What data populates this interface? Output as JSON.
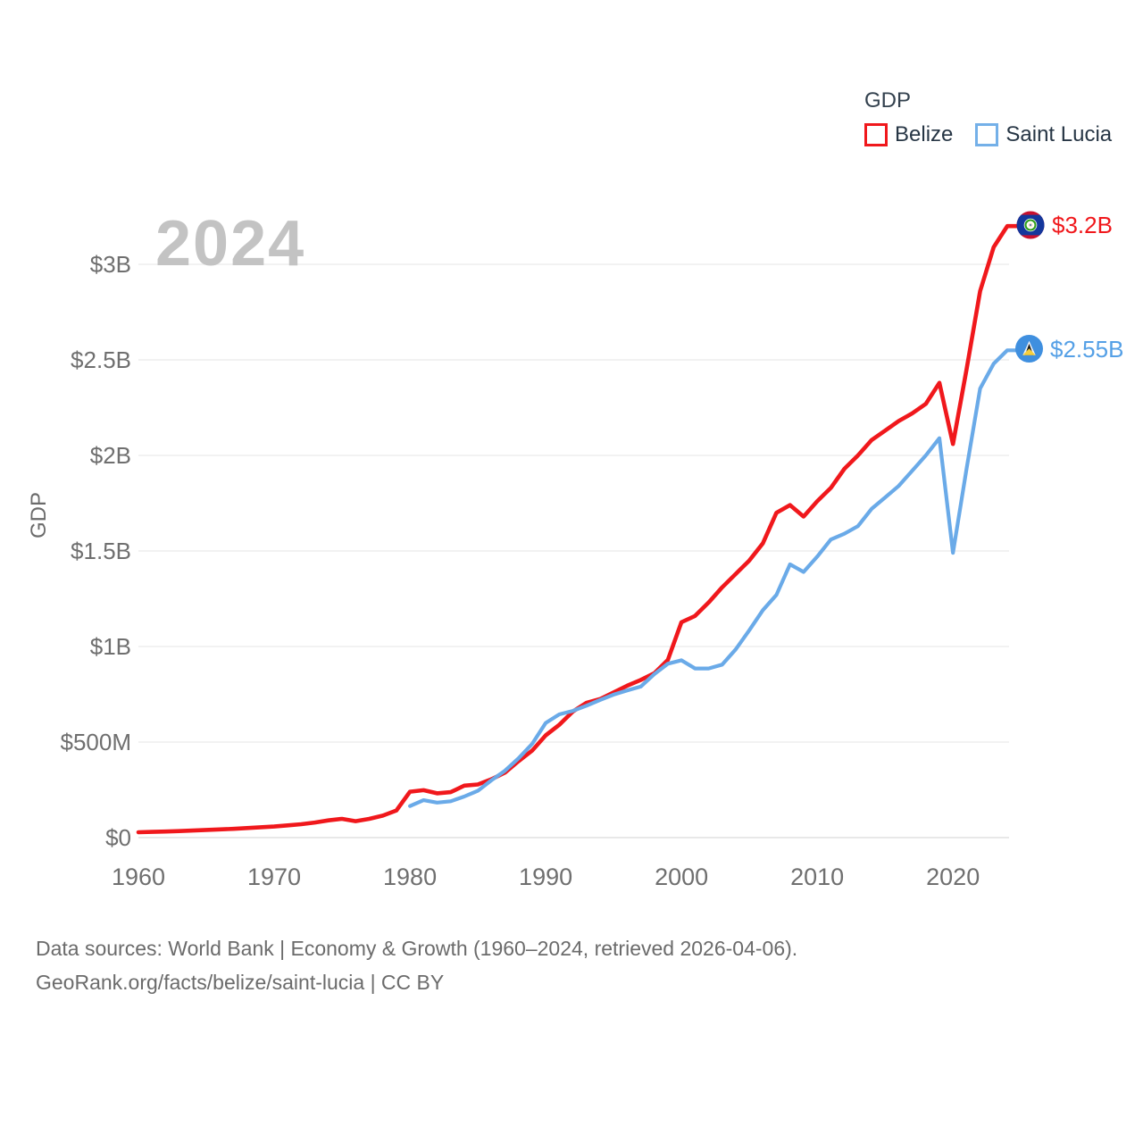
{
  "watermark": "2024",
  "legend": {
    "title": "GDP",
    "items": [
      {
        "label": "Belize",
        "color": "#f0181c"
      },
      {
        "label": "Saint Lucia",
        "color": "#74b0e8"
      }
    ]
  },
  "end_labels": {
    "belize": "$3.2B",
    "saint_lucia": "$2.55B"
  },
  "y_axis": {
    "title": "GDP",
    "ticks": [
      {
        "label": "$0",
        "value": 0
      },
      {
        "label": "$500M",
        "value": 0.5
      },
      {
        "label": "$1B",
        "value": 1
      },
      {
        "label": "$1.5B",
        "value": 1.5
      },
      {
        "label": "$2B",
        "value": 2
      },
      {
        "label": "$2.5B",
        "value": 2.5
      },
      {
        "label": "$3B",
        "value": 3
      }
    ]
  },
  "x_axis": {
    "ticks": [
      {
        "label": "1960",
        "value": 1960
      },
      {
        "label": "1970",
        "value": 1970
      },
      {
        "label": "1980",
        "value": 1980
      },
      {
        "label": "1990",
        "value": 1990
      },
      {
        "label": "2000",
        "value": 2000
      },
      {
        "label": "2010",
        "value": 2010
      },
      {
        "label": "2020",
        "value": 2020
      }
    ]
  },
  "footer": {
    "line1": "Data sources: World Bank | Economy & Growth (1960–2024, retrieved 2026-04-06).",
    "line2": "GeoRank.org/facts/belize/saint-lucia | CC BY"
  },
  "chart_data": {
    "type": "line",
    "title": "GDP",
    "xlabel": "",
    "ylabel": "GDP",
    "y_unit": "USD billions",
    "xlim": [
      1960,
      2024
    ],
    "ylim": [
      0,
      3.35
    ],
    "grid": true,
    "legend_position": "top-right",
    "gridline_values": [
      0,
      0.5,
      1,
      1.5,
      2,
      2.5,
      3
    ],
    "x": [
      1960,
      1961,
      1962,
      1963,
      1964,
      1965,
      1966,
      1967,
      1968,
      1969,
      1970,
      1971,
      1972,
      1973,
      1974,
      1975,
      1976,
      1977,
      1978,
      1979,
      1980,
      1981,
      1982,
      1983,
      1984,
      1985,
      1986,
      1987,
      1988,
      1989,
      1990,
      1991,
      1992,
      1993,
      1994,
      1995,
      1996,
      1997,
      1998,
      1999,
      2000,
      2001,
      2002,
      2003,
      2004,
      2005,
      2006,
      2007,
      2008,
      2009,
      2010,
      2011,
      2012,
      2013,
      2014,
      2015,
      2016,
      2017,
      2018,
      2019,
      2020,
      2021,
      2022,
      2023,
      2024
    ],
    "series": [
      {
        "name": "Belize",
        "color": "#f0181c",
        "end_value_label": "$3.2B",
        "values": [
          0.028,
          0.03,
          0.032,
          0.034,
          0.037,
          0.04,
          0.043,
          0.046,
          0.05,
          0.054,
          0.058,
          0.064,
          0.07,
          0.079,
          0.09,
          0.098,
          0.086,
          0.098,
          0.115,
          0.142,
          0.24,
          0.248,
          0.232,
          0.238,
          0.272,
          0.278,
          0.305,
          0.34,
          0.4,
          0.455,
          0.535,
          0.59,
          0.66,
          0.705,
          0.725,
          0.76,
          0.795,
          0.825,
          0.86,
          0.93,
          1.127,
          1.16,
          1.23,
          1.31,
          1.38,
          1.45,
          1.54,
          1.7,
          1.74,
          1.68,
          1.76,
          1.83,
          1.93,
          2.0,
          2.08,
          2.13,
          2.18,
          2.22,
          2.27,
          2.38,
          2.06,
          2.45,
          2.86,
          3.09,
          3.2
        ]
      },
      {
        "name": "Saint Lucia",
        "color": "#6aaae8",
        "end_value_label": "$2.55B",
        "values": [
          null,
          null,
          null,
          null,
          null,
          null,
          null,
          null,
          null,
          null,
          null,
          null,
          null,
          null,
          null,
          null,
          null,
          null,
          null,
          null,
          0.165,
          0.196,
          0.183,
          0.19,
          0.215,
          0.245,
          0.3,
          0.35,
          0.415,
          0.49,
          0.6,
          0.645,
          0.663,
          0.69,
          0.72,
          0.748,
          0.77,
          0.79,
          0.855,
          0.91,
          0.928,
          0.885,
          0.885,
          0.905,
          0.985,
          1.085,
          1.19,
          1.27,
          1.43,
          1.39,
          1.47,
          1.56,
          1.59,
          1.63,
          1.72,
          1.78,
          1.84,
          1.92,
          2.0,
          2.09,
          1.49,
          1.93,
          2.35,
          2.48,
          2.55
        ]
      }
    ]
  }
}
